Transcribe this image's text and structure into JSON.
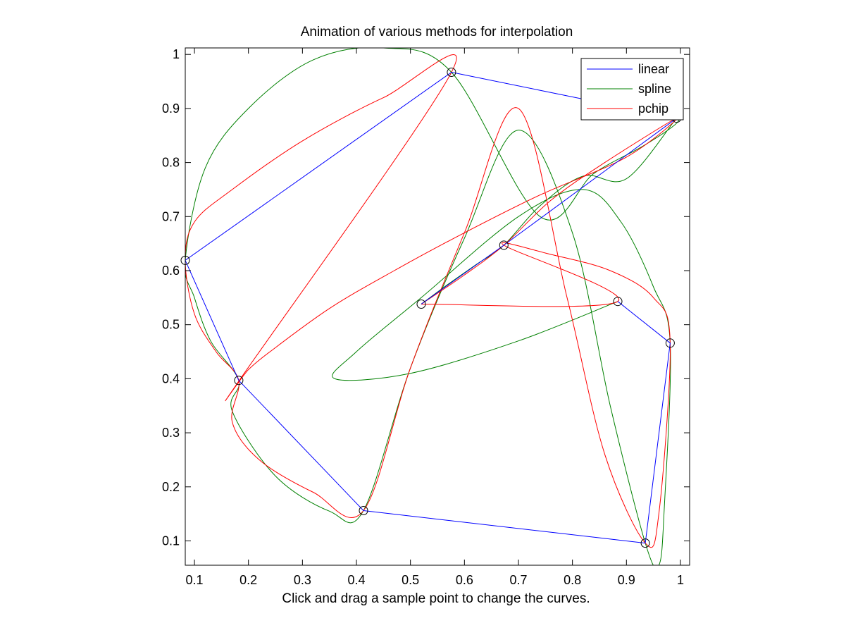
{
  "figure": {
    "title": "Animation of various methods for interpolation",
    "xlabel": "Click and drag a sample point to change the curves."
  },
  "chart_data": {
    "type": "line",
    "title": "Animation of various methods for interpolation",
    "xlabel": "Click and drag a sample point to change the curves.",
    "ylabel": "",
    "xlim": [
      0.083,
      1.017
    ],
    "ylim": [
      0.055,
      1.012
    ],
    "xticks": [
      0.1,
      0.2,
      0.3,
      0.4,
      0.5,
      0.6,
      0.7,
      0.8,
      0.9,
      1
    ],
    "yticks": [
      0.1,
      0.2,
      0.3,
      0.4,
      0.5,
      0.6,
      0.7,
      0.8,
      0.9,
      1
    ],
    "grid": false,
    "legend_position": "top-right",
    "colors": {
      "linear": "#0000ff",
      "spline": "#008000",
      "pchip": "#ff0000",
      "markers": "#000000",
      "axes": "#000000"
    },
    "sample_points": {
      "x": [
        0.52,
        0.673,
        0.993,
        0.576,
        0.083,
        0.182,
        0.413,
        0.935,
        0.981,
        0.884
      ],
      "y": [
        0.538,
        0.647,
        0.882,
        0.967,
        0.619,
        0.397,
        0.156,
        0.096,
        0.466,
        0.543
      ]
    },
    "series": [
      {
        "name": "linear",
        "x": [
          0.52,
          0.673,
          0.993,
          0.576,
          0.083,
          0.182,
          0.413,
          0.935,
          0.981,
          0.884
        ],
        "y": [
          0.538,
          0.647,
          0.882,
          0.967,
          0.619,
          0.397,
          0.156,
          0.096,
          0.466,
          0.543
        ]
      },
      {
        "name": "spline",
        "x": [
          0.52,
          0.57,
          0.62,
          0.673,
          0.74,
          0.82,
          0.9,
          0.993,
          0.99,
          0.93,
          0.84,
          0.74,
          0.576,
          0.45,
          0.32,
          0.2,
          0.12,
          0.083,
          0.1,
          0.13,
          0.182,
          0.17,
          0.25,
          0.35,
          0.413,
          0.5,
          0.6,
          0.7,
          0.8,
          0.87,
          0.935,
          0.96,
          0.97,
          0.981,
          0.95,
          0.89,
          0.82,
          0.7,
          0.52,
          0.4,
          0.36,
          0.5,
          0.7,
          0.884
        ],
        "y": [
          0.538,
          0.575,
          0.61,
          0.647,
          0.72,
          0.775,
          0.77,
          0.882,
          0.87,
          0.83,
          0.78,
          0.7,
          0.967,
          1.012,
          0.99,
          0.9,
          0.79,
          0.619,
          0.55,
          0.47,
          0.397,
          0.34,
          0.22,
          0.155,
          0.156,
          0.42,
          0.66,
          0.86,
          0.67,
          0.35,
          0.096,
          0.055,
          0.16,
          0.466,
          0.57,
          0.69,
          0.75,
          0.7,
          0.55,
          0.45,
          0.4,
          0.41,
          0.47,
          0.543
        ]
      },
      {
        "name": "pchip",
        "x": [
          0.52,
          0.6,
          0.673,
          0.76,
          0.86,
          0.993,
          0.9,
          0.74,
          0.6,
          0.47,
          0.35,
          0.24,
          0.2,
          0.183,
          0.576,
          0.45,
          0.3,
          0.17,
          0.1,
          0.083,
          0.1,
          0.14,
          0.182,
          0.17,
          0.22,
          0.32,
          0.413,
          0.5,
          0.6,
          0.7,
          0.79,
          0.86,
          0.935,
          0.96,
          0.981,
          0.95,
          0.87,
          0.76,
          0.673,
          0.884,
          0.52
        ],
        "y": [
          0.538,
          0.592,
          0.647,
          0.73,
          0.8,
          0.882,
          0.81,
          0.74,
          0.67,
          0.6,
          0.53,
          0.45,
          0.417,
          0.397,
          0.967,
          0.92,
          0.84,
          0.75,
          0.69,
          0.619,
          0.52,
          0.45,
          0.397,
          0.32,
          0.25,
          0.19,
          0.156,
          0.42,
          0.67,
          0.9,
          0.55,
          0.26,
          0.096,
          0.15,
          0.466,
          0.55,
          0.6,
          0.63,
          0.647,
          0.543,
          0.538
        ]
      }
    ]
  }
}
